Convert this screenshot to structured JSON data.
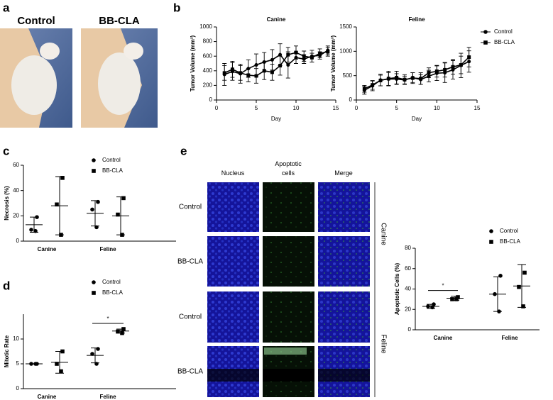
{
  "figure": {
    "panel_labels": [
      "a",
      "b",
      "c",
      "d",
      "e"
    ],
    "photo_labels": [
      "Control",
      "BB-CLA"
    ],
    "micrograph": {
      "columns": [
        "Nucleus",
        "Apoptotic cells",
        "Merge"
      ],
      "rows": [
        "Control",
        "BB-CLA",
        "Control",
        "BB-CLA"
      ],
      "groups": [
        "Canine",
        "Feline"
      ]
    }
  },
  "chart_data": [
    {
      "type": "line",
      "title": "Canine",
      "x": [
        1,
        2,
        3,
        4,
        5,
        6,
        7,
        8,
        9,
        10,
        11,
        12,
        13,
        14
      ],
      "xlim": [
        0,
        15
      ],
      "xticks": [
        0,
        5,
        10,
        15
      ],
      "ylim": [
        0,
        1000
      ],
      "yticks": [
        0,
        200,
        400,
        600,
        800,
        1000
      ],
      "xlabel": "Day",
      "ylabel": "Tumor Volume (mm³)",
      "series": [
        {
          "marker": "circle",
          "color": "#000000",
          "values": [
            350,
            390,
            360,
            430,
            480,
            520,
            550,
            620,
            480,
            580,
            560,
            600,
            610,
            680
          ],
          "errors": [
            150,
            120,
            130,
            120,
            150,
            130,
            140,
            150,
            180,
            80,
            60,
            80,
            50,
            60
          ]
        },
        {
          "marker": "square",
          "color": "#000000",
          "values": [
            370,
            420,
            370,
            340,
            330,
            400,
            380,
            470,
            620,
            650,
            600,
            580,
            640,
            660
          ],
          "errors": [
            100,
            110,
            100,
            90,
            100,
            120,
            110,
            130,
            100,
            90,
            70,
            60,
            60,
            60
          ]
        }
      ]
    },
    {
      "type": "line",
      "title": "Feline",
      "x": [
        1,
        2,
        3,
        4,
        5,
        6,
        7,
        8,
        9,
        10,
        11,
        12,
        13,
        14
      ],
      "xlim": [
        0,
        15
      ],
      "xticks": [
        0,
        5,
        10,
        15
      ],
      "ylim": [
        0,
        1500
      ],
      "yticks": [
        0,
        500,
        1000,
        1500
      ],
      "xlabel": "Day",
      "ylabel": "Tumor Volume (mm³)",
      "legend": "right",
      "series": [
        {
          "name": "Control",
          "marker": "circle",
          "color": "#000000",
          "values": [
            200,
            290,
            410,
            430,
            430,
            410,
            460,
            420,
            490,
            550,
            560,
            620,
            710,
            790
          ],
          "errors": [
            80,
            100,
            120,
            130,
            110,
            80,
            100,
            100,
            120,
            150,
            200,
            190,
            250,
            220
          ]
        },
        {
          "name": "BB-CLA",
          "marker": "square",
          "color": "#000000",
          "values": [
            230,
            310,
            400,
            440,
            460,
            420,
            450,
            440,
            560,
            590,
            620,
            680,
            720,
            880
          ],
          "errors": [
            70,
            90,
            110,
            150,
            130,
            100,
            110,
            120,
            100,
            120,
            150,
            150,
            180,
            200
          ]
        }
      ]
    },
    {
      "type": "dotplot",
      "categories": [
        "Canine",
        "Feline"
      ],
      "ylim": [
        0,
        60
      ],
      "yticks": [
        0,
        20,
        40,
        60
      ],
      "ylabel": "Necrosis (%)",
      "legend": "top",
      "series": [
        {
          "name": "Control",
          "marker": "circle",
          "color": "#000000",
          "points": [
            [
              19,
              9,
              8
            ],
            [
              31,
              25,
              11
            ]
          ],
          "mean": [
            13,
            22
          ],
          "sd": [
            6,
            10
          ]
        },
        {
          "name": "BB-CLA",
          "marker": "square",
          "color": "#000000",
          "points": [
            [
              50,
              29,
              5
            ],
            [
              34,
              21,
              5
            ]
          ],
          "mean": [
            28,
            20
          ],
          "sd": [
            23,
            15
          ]
        }
      ]
    },
    {
      "type": "dotplot",
      "categories": [
        "Canine",
        "Feline"
      ],
      "ylim": [
        0,
        15
      ],
      "yticks": [
        0,
        5,
        10
      ],
      "ylabel": "Mitotic Rate",
      "legend": "top",
      "significance": [
        {
          "label": "*",
          "category": "Feline"
        }
      ],
      "series": [
        {
          "name": "Control",
          "marker": "circle",
          "color": "#000000",
          "points": [
            [
              5,
              5,
              5
            ],
            [
              8,
              7,
              5
            ]
          ],
          "mean": [
            5,
            6.7
          ],
          "sd": [
            0,
            1.5
          ]
        },
        {
          "name": "BB-CLA",
          "marker": "square",
          "color": "#000000",
          "points": [
            [
              7.5,
              5,
              3.5
            ],
            [
              12,
              11.5,
              11.2
            ]
          ],
          "mean": [
            5.3,
            11.6
          ],
          "sd": [
            2.2,
            0.4
          ]
        }
      ]
    },
    {
      "type": "dotplot",
      "categories": [
        "Canine",
        "Feline"
      ],
      "ylim": [
        0,
        80
      ],
      "yticks": [
        0,
        20,
        40,
        60,
        80
      ],
      "ylabel": "Apoptotic Cells (%)",
      "legend": "top",
      "significance": [
        {
          "label": "*",
          "category": "Canine"
        }
      ],
      "series": [
        {
          "name": "Control",
          "marker": "circle",
          "color": "#000000",
          "points": [
            [
              25,
              23,
              22
            ],
            [
              53,
              35,
              18
            ]
          ],
          "mean": [
            23,
            35
          ],
          "sd": [
            2,
            17
          ]
        },
        {
          "name": "BB-CLA",
          "marker": "square",
          "color": "#000000",
          "points": [
            [
              32,
              30,
              30
            ],
            [
              56,
              42,
              23
            ]
          ],
          "mean": [
            31,
            43
          ],
          "sd": [
            2,
            21
          ]
        }
      ]
    }
  ]
}
